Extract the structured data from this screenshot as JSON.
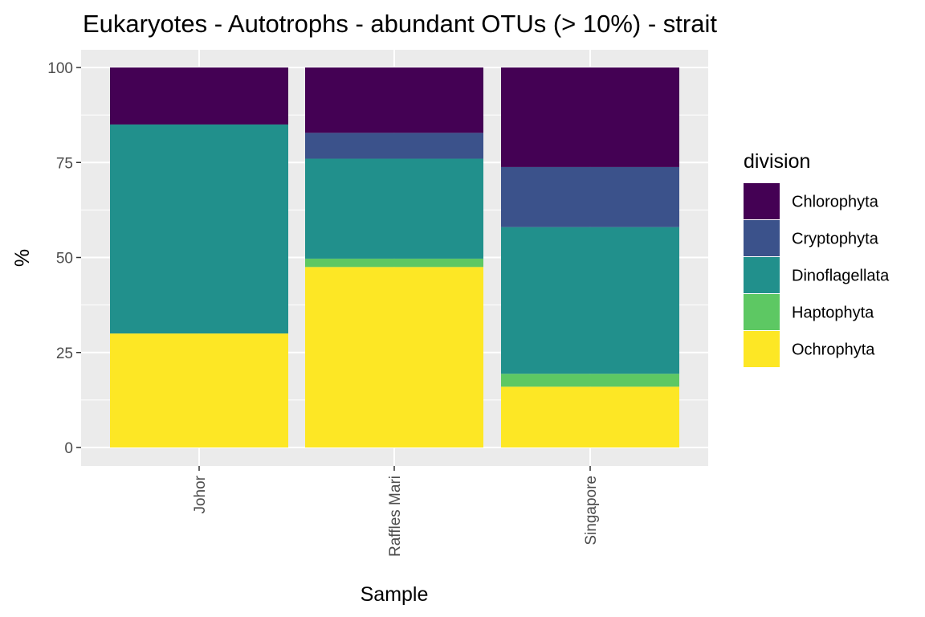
{
  "chart_data": {
    "type": "bar",
    "stacked": true,
    "title": "Eukaryotes - Autotrophs - abundant OTUs (> 10%) - strait",
    "xlabel": "Sample",
    "ylabel": "%",
    "ylim": [
      0,
      100
    ],
    "yticks": [
      0,
      25,
      50,
      75,
      100
    ],
    "categories": [
      "Johor",
      "Raffles Mari",
      "Singapore"
    ],
    "grid": true,
    "legend": {
      "title": "division",
      "position": "right"
    },
    "series": [
      {
        "name": "Ochrophyta",
        "color": "#FDE725",
        "values": [
          30,
          47.5,
          16
        ]
      },
      {
        "name": "Haptophyta",
        "color": "#5DC863",
        "values": [
          0,
          2.2,
          3.4
        ]
      },
      {
        "name": "Dinoflagellata",
        "color": "#21908C",
        "values": [
          55,
          26.3,
          38.6
        ]
      },
      {
        "name": "Cryptophyta",
        "color": "#3B528B",
        "values": [
          0,
          6.8,
          15.8
        ]
      },
      {
        "name": "Chlorophyta",
        "color": "#440154",
        "values": [
          15,
          17.2,
          26.2
        ]
      }
    ],
    "legend_order": [
      "Chlorophyta",
      "Cryptophyta",
      "Dinoflagellata",
      "Haptophyta",
      "Ochrophyta"
    ],
    "panel_background": "#EBEBEB",
    "grid_color": "#FFFFFF"
  }
}
